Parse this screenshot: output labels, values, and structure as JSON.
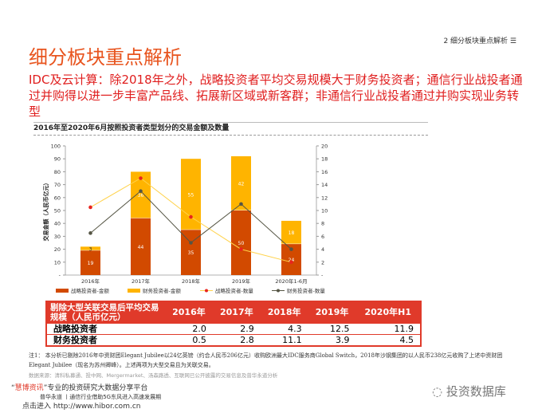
{
  "header": {
    "section": "2 细分板块重点解析",
    "menu_icon": "menu-icon"
  },
  "title": "细分板块重点解析",
  "subtitle": "IDC及云计算：除2018年之外，战略投资者平均交易规模大于财务投资者；通信行业战投者通过并购得以进一步丰富产品线、拓展新区域或新客群；非通信行业战投者通过并购实现业务转型",
  "chart_data": {
    "type": "bar",
    "title": "2016年至2020年6月按照投资者类型划分的交易金额及数量",
    "categories": [
      "2016年",
      "2017年",
      "2018年",
      "2019年",
      "2020年1-6月"
    ],
    "ylabel": "交易金额（人民币亿元）",
    "ylim": [
      0,
      100
    ],
    "y2lim": [
      0,
      20
    ],
    "yticks": [
      "-",
      "10",
      "20",
      "30",
      "40",
      "50",
      "60",
      "70",
      "80",
      "90",
      "100"
    ],
    "y2ticks": [
      "-",
      "2",
      "4",
      "6",
      "8",
      "10",
      "12",
      "14",
      "16",
      "18",
      "20"
    ],
    "series": [
      {
        "name": "战略投资者-金额",
        "kind": "bar",
        "values": [
          19,
          44,
          35,
          50,
          24
        ],
        "color": "#d24a00"
      },
      {
        "name": "财务投资者-金额",
        "kind": "bar",
        "values": [
          3,
          36,
          55,
          42,
          18
        ],
        "color": "#ffb400"
      },
      {
        "name": "战略投资者-数量",
        "kind": "line",
        "values": [
          10.5,
          15,
          9,
          4,
          2
        ],
        "color": "#ffd24a",
        "marker": "#e8241e"
      },
      {
        "name": "财务投资者-数量",
        "kind": "line",
        "values": [
          6.5,
          13,
          5,
          11,
          4
        ],
        "color": "#555544",
        "marker": "#555544"
      }
    ],
    "legend": "bottom"
  },
  "table": {
    "header": [
      "剔除大型关联交易后平均交易规模（人民币亿元）",
      "2016年",
      "2017年",
      "2018年",
      "2019年",
      "2020年H1"
    ],
    "rows": [
      [
        "战略投资者",
        "2.0",
        "2.9",
        "4.3",
        "12.5",
        "11.9"
      ],
      [
        "财务投资者",
        "0.5",
        "2.8",
        "11.1",
        "3.9",
        "4.5"
      ]
    ]
  },
  "note": "注1： 本分析已剔除2016年中资财团Elegant Jubilee以24亿英镑（约合人民币206亿元）收购欧洲最大IDC服务商Global Switch，2018年沙钢集团的以人民币238亿元收购了上述中资财团Elegant Jubilee（现名为苏州卿峰）。上述两项为大型交易且为关联交易。",
  "source": "数据来源：清科私募通、投中网、Mergermarket、汤森路透、互联网已公开披露的交易信息及普华永道分析",
  "footer": {
    "brand": "慧博资讯",
    "slogan": "专业的投资研究大数据分享平台",
    "line2": "普华永道 丨通信行业借助5G东风进入高速发展期",
    "enter": "点击进入",
    "url": "http://www.hibor.com.cn",
    "watermark": "投资数据库"
  }
}
